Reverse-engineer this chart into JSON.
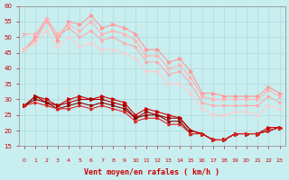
{
  "x": [
    0,
    1,
    2,
    3,
    4,
    5,
    6,
    7,
    8,
    9,
    10,
    11,
    12,
    13,
    14,
    15,
    16,
    17,
    18,
    19,
    20,
    21,
    22,
    23
  ],
  "line1": [
    46,
    50,
    56,
    49,
    55,
    54,
    57,
    53,
    54,
    53,
    51,
    46,
    46,
    42,
    43,
    39,
    32,
    32,
    31,
    31,
    31,
    31,
    34,
    32
  ],
  "line2": [
    51,
    51,
    56,
    51,
    54,
    52,
    55,
    51,
    52,
    51,
    49,
    44,
    44,
    40,
    41,
    37,
    31,
    30,
    30,
    30,
    30,
    30,
    33,
    31
  ],
  "line3": [
    46,
    49,
    55,
    50,
    53,
    50,
    52,
    49,
    50,
    48,
    47,
    42,
    42,
    38,
    39,
    35,
    29,
    28,
    28,
    28,
    28,
    28,
    31,
    29
  ],
  "line4": [
    46,
    48,
    52,
    47,
    50,
    47,
    48,
    46,
    46,
    45,
    43,
    39,
    39,
    35,
    35,
    32,
    27,
    25,
    25,
    26,
    26,
    25,
    28,
    27
  ],
  "line5": [
    28,
    31,
    30,
    28,
    30,
    31,
    30,
    31,
    30,
    29,
    25,
    27,
    26,
    25,
    24,
    20,
    19,
    17,
    17,
    19,
    19,
    19,
    21,
    21
  ],
  "line6": [
    28,
    31,
    29,
    28,
    29,
    30,
    30,
    30,
    29,
    28,
    24,
    26,
    25,
    24,
    24,
    20,
    19,
    17,
    17,
    19,
    19,
    19,
    20,
    21
  ],
  "line7": [
    28,
    30,
    29,
    27,
    28,
    29,
    28,
    29,
    28,
    27,
    24,
    25,
    25,
    23,
    23,
    19,
    19,
    17,
    17,
    19,
    19,
    19,
    20,
    21
  ],
  "line8": [
    28,
    29,
    28,
    27,
    27,
    28,
    27,
    28,
    27,
    26,
    23,
    24,
    24,
    22,
    22,
    19,
    19,
    17,
    17,
    19,
    19,
    19,
    20,
    21
  ],
  "colors": {
    "light_pink1": "#FF9999",
    "light_pink2": "#FFB3B3",
    "light_pink3": "#FFAAAA",
    "light_pink4": "#FFCCCC",
    "dark_red1": "#CC0000",
    "dark_red2": "#AA0000",
    "dark_red3": "#880000",
    "dark_red4": "#DD2222"
  },
  "bg_color": "#C8EEF0",
  "grid_color": "#B0D8DA",
  "axis_color": "#CC0000",
  "xlabel": "Vent moyen/en rafales ( km/h )",
  "ylabel": "",
  "xlim": [
    0,
    23
  ],
  "ylim": [
    15,
    60
  ],
  "yticks": [
    15,
    20,
    25,
    30,
    35,
    40,
    45,
    50,
    55,
    60
  ],
  "xticks": [
    0,
    1,
    2,
    3,
    4,
    5,
    6,
    7,
    8,
    9,
    10,
    11,
    12,
    13,
    14,
    15,
    16,
    17,
    18,
    19,
    20,
    21,
    22,
    23
  ]
}
